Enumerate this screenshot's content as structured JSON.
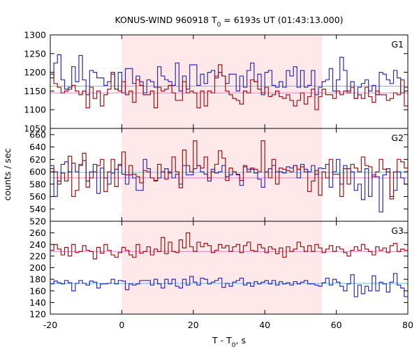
{
  "chart_data": {
    "type": "line",
    "title_main": "KONUS-WIND 960918 T",
    "title_sub": "0",
    "title_rest": " = 6193s UT (01:43:13.000)",
    "xlabel_main": "T - T",
    "xlabel_sub": "0",
    "xlabel_rest": ", s",
    "ylabel": "counts / sec",
    "xlim": [
      -20,
      80
    ],
    "x_ticks": [
      -20,
      0,
      20,
      40,
      60,
      80
    ],
    "shaded_interval": [
      0,
      56
    ],
    "colors": {
      "series_blue": "#2b2bb3",
      "series_red": "#a01010",
      "bg_blue": "#4fc3e8",
      "bg_red": "#e879c8",
      "shade": "#ffe8ea"
    },
    "panels": [
      {
        "label": "G1",
        "ylim": [
          1050,
          1300
        ],
        "y_ticks": [
          1050,
          1100,
          1150,
          1200,
          1250,
          1300
        ],
        "bg_blue": 1163,
        "bg_red": 1145,
        "blue": [
          1185,
          1225,
          1247,
          1180,
          1155,
          1160,
          1215,
          1175,
          1245,
          1180,
          1140,
          1205,
          1200,
          1185,
          1185,
          1165,
          1175,
          1195,
          1155,
          1200,
          1145,
          1210,
          1210,
          1170,
          1190,
          1175,
          1145,
          1180,
          1175,
          1160,
          1215,
          1190,
          1180,
          1175,
          1165,
          1225,
          1150,
          1190,
          1155,
          1220,
          1220,
          1165,
          1195,
          1170,
          1200,
          1205,
          1185,
          1200,
          1190,
          1170,
          1195,
          1195,
          1150,
          1190,
          1160,
          1205,
          1225,
          1175,
          1195,
          1140,
          1200,
          1205,
          1165,
          1160,
          1175,
          1160,
          1205,
          1190,
          1215,
          1160,
          1205,
          1160,
          1165,
          1205,
          1140,
          1160,
          1175,
          1180,
          1210,
          1150,
          1180,
          1240,
          1205,
          1150,
          1175,
          1130,
          1160,
          1170,
          1180,
          1150,
          1165,
          1140,
          1200,
          1195,
          1180,
          1170,
          1205,
          1185,
          1145,
          1160
        ],
        "red": [
          1195,
          1170,
          1160,
          1145,
          1150,
          1155,
          1165,
          1150,
          1140,
          1150,
          1105,
          1160,
          1130,
          1150,
          1110,
          1140,
          1155,
          1200,
          1155,
          1150,
          1175,
          1140,
          1150,
          1120,
          1180,
          1165,
          1140,
          1140,
          1150,
          1105,
          1160,
          1150,
          1155,
          1165,
          1145,
          1125,
          1125,
          1175,
          1145,
          1150,
          1145,
          1105,
          1150,
          1110,
          1150,
          1145,
          1190,
          1220,
          1190,
          1150,
          1140,
          1130,
          1125,
          1115,
          1150,
          1145,
          1180,
          1175,
          1155,
          1145,
          1160,
          1135,
          1140,
          1150,
          1135,
          1130,
          1140,
          1125,
          1110,
          1125,
          1145,
          1115,
          1135,
          1155,
          1100,
          1135,
          1155,
          1140,
          1140,
          1130,
          1150,
          1140,
          1150,
          1145,
          1160,
          1130,
          1140,
          1130,
          1160,
          1135,
          1120,
          1150,
          1140,
          1140,
          1125,
          1130,
          1145,
          1140,
          1180,
          1110
        ]
      },
      {
        "label": "G2",
        "ylim": [
          520,
          670
        ],
        "y_ticks": [
          520,
          540,
          560,
          580,
          600,
          620,
          640,
          660
        ],
        "bg_blue": 599,
        "bg_red": 590,
        "blue": [
          610,
          560,
          585,
          612,
          616,
          600,
          614,
          600,
          610,
          618,
          585,
          600,
          612,
          565,
          606,
          590,
          580,
          598,
          604,
          612,
          596,
          580,
          595,
          590,
          570,
          570,
          620,
          605,
          590,
          585,
          590,
          600,
          605,
          598,
          590,
          596,
          580,
          610,
          595,
          595,
          605,
          610,
          600,
          596,
          585,
          604,
          598,
          600,
          610,
          592,
          595,
          600,
          595,
          578,
          608,
          604,
          604,
          598,
          588,
          575,
          600,
          605,
          610,
          600,
          600,
          598,
          608,
          606,
          610,
          590,
          612,
          604,
          600,
          610,
          596,
          606,
          605,
          612,
          575,
          600,
          620,
          580,
          610,
          605,
          600,
          570,
          580,
          555,
          605,
          560,
          595,
          592,
          535,
          595,
          605,
          560,
          570,
          600,
          590,
          580
        ],
        "red": [
          605,
          600,
          580,
          598,
          585,
          625,
          560,
          570,
          612,
          630,
          575,
          590,
          600,
          610,
          620,
          568,
          600,
          620,
          576,
          610,
          632,
          595,
          610,
          596,
          592,
          582,
          602,
          600,
          590,
          586,
          612,
          600,
          588,
          600,
          624,
          600,
          574,
          635,
          610,
          600,
          650,
          610,
          606,
          624,
          590,
          600,
          612,
          634,
          622,
          586,
          606,
          600,
          596,
          586,
          610,
          600,
          606,
          604,
          600,
          650,
          600,
          590,
          620,
          580,
          606,
          604,
          602,
          600,
          610,
          604,
          608,
          600,
          568,
          585,
          602,
          562,
          600,
          590,
          620,
          596,
          596,
          560,
          605,
          580,
          612,
          606,
          600,
          624,
          610,
          608,
          592,
          600,
          620,
          604,
          600,
          556,
          600,
          620,
          616,
          606
        ]
      },
      {
        "label": "G3",
        "ylim": [
          120,
          280
        ],
        "y_ticks": [
          120,
          140,
          160,
          180,
          200,
          220,
          240,
          260
        ],
        "bg_blue": 173,
        "bg_red": 228,
        "blue": [
          172,
          177,
          174,
          172,
          178,
          174,
          160,
          173,
          178,
          173,
          170,
          177,
          175,
          165,
          172,
          172,
          173,
          180,
          172,
          178,
          177,
          162,
          172,
          170,
          172,
          178,
          178,
          178,
          170,
          180,
          172,
          165,
          180,
          172,
          180,
          168,
          165,
          180,
          170,
          185,
          175,
          170,
          182,
          180,
          172,
          175,
          178,
          182,
          166,
          173,
          168,
          175,
          178,
          182,
          170,
          174,
          168,
          176,
          172,
          175,
          178,
          172,
          178,
          170,
          176,
          172,
          174,
          170,
          176,
          172,
          175,
          178,
          172,
          172,
          170,
          168,
          174,
          182,
          170,
          180,
          175,
          168,
          160,
          172,
          188,
          150,
          170,
          155,
          168,
          160,
          186,
          160,
          175,
          172,
          158,
          175,
          190,
          170,
          165,
          150
        ],
        "red": [
          230,
          240,
          232,
          222,
          235,
          220,
          240,
          226,
          228,
          238,
          230,
          228,
          215,
          235,
          225,
          240,
          230,
          222,
          218,
          226,
          235,
          230,
          222,
          218,
          240,
          225,
          228,
          236,
          222,
          232,
          228,
          252,
          224,
          244,
          228,
          226,
          248,
          234,
          260,
          236,
          228,
          244,
          236,
          242,
          238,
          226,
          230,
          240,
          234,
          238,
          228,
          236,
          240,
          226,
          238,
          244,
          230,
          228,
          240,
          234,
          226,
          236,
          232,
          224,
          234,
          218,
          236,
          228,
          232,
          244,
          236,
          228,
          238,
          228,
          240,
          234,
          226,
          232,
          238,
          228,
          236,
          232,
          226,
          220,
          230,
          236,
          230,
          240,
          232,
          228,
          222,
          236,
          230,
          234,
          226,
          238,
          242,
          228,
          232,
          230
        ]
      }
    ]
  }
}
